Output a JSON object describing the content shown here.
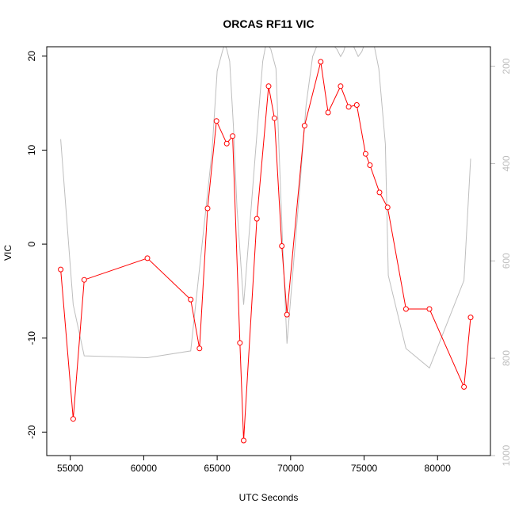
{
  "chart_data": {
    "type": "line",
    "title": "ORCAS RF11 VIC",
    "xlabel": "UTC Seconds",
    "ylabel": "VIC",
    "xlim": [
      53400,
      83600
    ],
    "ylim": [
      -22.5,
      21
    ],
    "x_ticks": [
      55000,
      60000,
      65000,
      70000,
      75000,
      80000
    ],
    "x_tick_labels": [
      "55000",
      "60000",
      "65000",
      "70000",
      "75000",
      "80000"
    ],
    "y_ticks": [
      -20,
      -10,
      0,
      10,
      20
    ],
    "y_tick_labels": [
      "-20",
      "-10",
      "0",
      "10",
      "20"
    ],
    "y2_lim": [
      1000,
      160
    ],
    "y2_ticks": [
      200,
      400,
      600,
      800,
      1000
    ],
    "y2_tick_labels": [
      "200",
      "400",
      "600",
      "800",
      "1000"
    ],
    "grid": false,
    "series": [
      {
        "color": "#ff0000",
        "axis": "left",
        "markers": "open-circle",
        "x": [
          54350,
          55200,
          55950,
          60250,
          63200,
          63800,
          64350,
          64950,
          65650,
          66050,
          66550,
          66800,
          67700,
          68500,
          68900,
          69400,
          69750,
          70950,
          72050,
          72550,
          73400,
          73950,
          74500,
          75100,
          75400,
          76050,
          76600,
          77850,
          79450,
          81800,
          82250
        ],
        "values": [
          -2.7,
          -18.6,
          -3.8,
          -1.5,
          -5.9,
          -11.1,
          3.8,
          13.1,
          10.7,
          11.5,
          -10.5,
          -20.9,
          2.7,
          16.8,
          13.4,
          -0.2,
          -7.5,
          12.6,
          19.4,
          14.0,
          16.8,
          14.6,
          14.8,
          9.6,
          8.4,
          5.5,
          3.9,
          -6.9,
          -6.9,
          -15.2,
          -7.8
        ]
      },
      {
        "color": "#bebebe",
        "axis": "right",
        "x": [
          54350,
          55200,
          55950,
          60250,
          63200,
          64650,
          65000,
          65350,
          65500,
          65650,
          65850,
          66100,
          66350,
          66800,
          67600,
          68100,
          68350,
          68650,
          69000,
          69450,
          69750,
          70650,
          71050,
          71500,
          71900,
          72300,
          72700,
          73150,
          73400,
          73600,
          73800,
          74300,
          74600,
          74850,
          75200,
          75600,
          76000,
          76450,
          76650,
          77850,
          79450,
          81800,
          82250
        ],
        "values": [
          350,
          690,
          795,
          799,
          785,
          375,
          210,
          170,
          155,
          165,
          190,
          320,
          490,
          690,
          380,
          190,
          150,
          165,
          205,
          560,
          770,
          440,
          280,
          180,
          150,
          135,
          150,
          165,
          180,
          170,
          150,
          160,
          180,
          170,
          140,
          145,
          205,
          360,
          630,
          780,
          820,
          640,
          390
        ]
      }
    ]
  }
}
